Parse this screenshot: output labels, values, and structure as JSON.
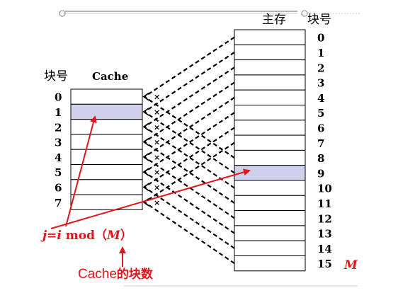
{
  "cache": {
    "header_label": "块号",
    "title": "Cache",
    "block_numbers": [
      "0",
      "1",
      "2",
      "3",
      "4",
      "5",
      "6",
      "7"
    ],
    "highlight_index": 1
  },
  "memory": {
    "title": "主存",
    "header_label": "块号",
    "block_numbers": [
      "0",
      "1",
      "2",
      "3",
      "4",
      "5",
      "6",
      "7",
      "8",
      "9",
      "10",
      "11",
      "12",
      "13",
      "14",
      "15"
    ],
    "highlight_index": 9,
    "count_label": "M"
  },
  "formula": {
    "j": "j",
    "eq": "=",
    "i": "i",
    "mod": " mod（",
    "m": "M",
    "close": "）"
  },
  "caption": {
    "latin": "Cache",
    "cjk": "的块数"
  },
  "colors": {
    "annotation": "#e3151a",
    "highlight": "#cfd1ec"
  }
}
